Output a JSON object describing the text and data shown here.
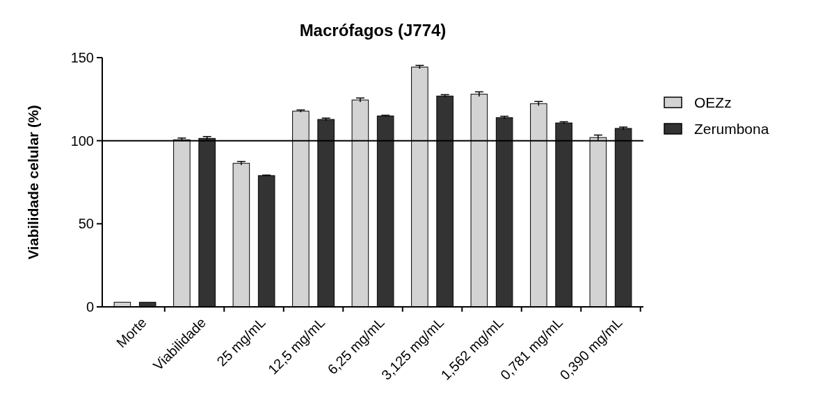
{
  "chart_data": {
    "type": "bar",
    "title": "Macrófagos (J774)",
    "ylabel": "Viabilidade celular (%)",
    "categories": [
      "Morte",
      "Viabilidade",
      "25 mg/mL",
      "12,5 mg/mL",
      "6,25 mg/mL",
      "3,125 mg/mL",
      "1,562 mg/mL",
      "0,781 mg/mL",
      "0,390 mg/mL"
    ],
    "series": [
      {
        "name": "OEZz",
        "color": "#d3d3d3",
        "values": [
          2.8,
          100.6,
          86.4,
          117.8,
          124.5,
          144.3,
          128.0,
          122.3,
          101.9
        ],
        "errors": [
          null,
          1.0,
          1.1,
          0.7,
          1.2,
          1.0,
          1.4,
          1.3,
          1.5
        ]
      },
      {
        "name": "Zerumbona",
        "color": "#333333",
        "values": [
          2.8,
          101.4,
          79.0,
          112.8,
          114.9,
          126.9,
          113.9,
          110.7,
          107.4
        ],
        "errors": [
          null,
          1.1,
          0.3,
          0.8,
          0.4,
          0.8,
          0.8,
          0.7,
          0.8
        ]
      }
    ],
    "ylim": [
      0,
      150
    ],
    "yticks": [
      0,
      50,
      100,
      150
    ],
    "ref_lines": [
      {
        "axis": "y",
        "value": 100,
        "color": "#000000"
      }
    ],
    "legend": "right",
    "grid": false
  }
}
